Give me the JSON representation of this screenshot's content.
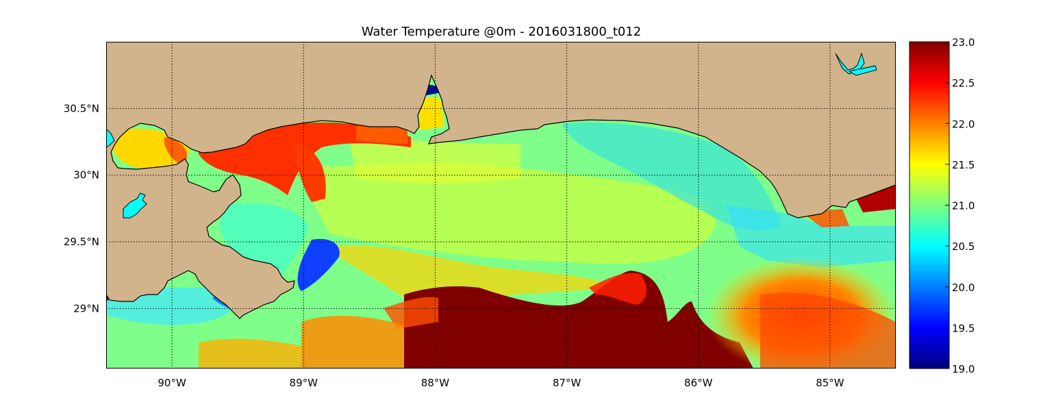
{
  "title": "Water Temperature @0m - 2016031800_t012",
  "map": {
    "lon_range": [
      -90.5,
      -84.5
    ],
    "lat_range": [
      28.55,
      31.0
    ],
    "land_color": "#d2b48c",
    "coast_color": "#000000",
    "lake_color": "#00ffff",
    "x_ticks": [
      "90°W",
      "89°W",
      "88°W",
      "87°W",
      "86°W",
      "85°W"
    ],
    "y_ticks": [
      "30.5°N",
      "30°N",
      "29.5°N",
      "29°N"
    ],
    "gridlines": "on, dotted"
  },
  "colorbar": {
    "colormap": "jet",
    "min": 19.0,
    "max": 23.0,
    "ticks": [
      "23.0",
      "22.5",
      "22.0",
      "21.5",
      "21.0",
      "20.5",
      "20.0",
      "19.5",
      "19.0"
    ],
    "stops": [
      "#00007f",
      "#0000ff",
      "#007fff",
      "#00ffff",
      "#7fff7f",
      "#ffff00",
      "#ff7f00",
      "#ff0000",
      "#7f0000"
    ]
  }
}
